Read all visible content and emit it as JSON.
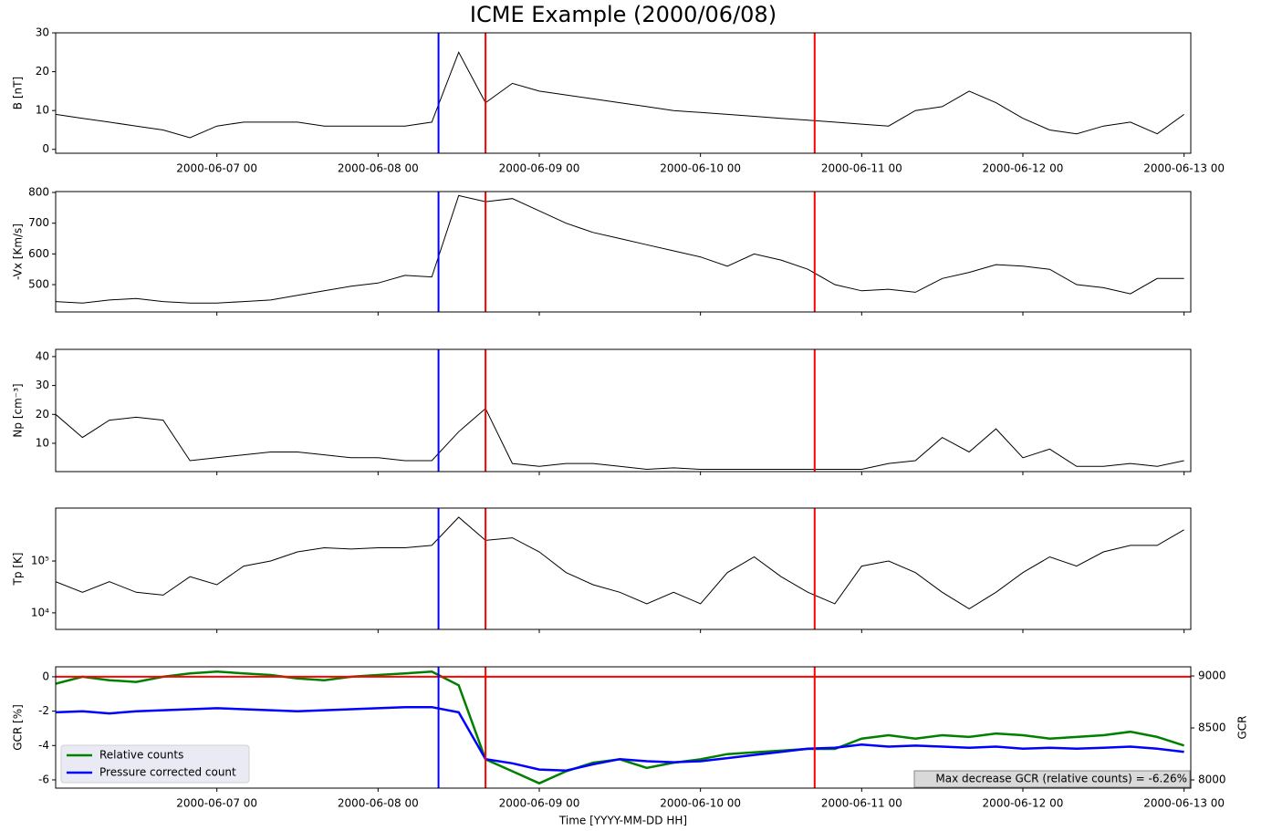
{
  "chart_data": [
    {
      "type": "line",
      "title": "ICME Example (2000/06/08)",
      "ylabel": "B [nT]",
      "color": "#000000",
      "xtick_labels": true,
      "x": [
        "2000-06-06 00",
        "2000-06-06 04",
        "2000-06-06 08",
        "2000-06-06 12",
        "2000-06-06 16",
        "2000-06-06 20",
        "2000-06-07 00",
        "2000-06-07 04",
        "2000-06-07 08",
        "2000-06-07 12",
        "2000-06-07 16",
        "2000-06-07 20",
        "2000-06-08 00",
        "2000-06-08 04",
        "2000-06-08 08",
        "2000-06-08 12",
        "2000-06-08 16",
        "2000-06-08 20",
        "2000-06-09 00",
        "2000-06-09 04",
        "2000-06-09 08",
        "2000-06-09 12",
        "2000-06-09 16",
        "2000-06-09 20",
        "2000-06-10 00",
        "2000-06-10 04",
        "2000-06-10 08",
        "2000-06-10 12",
        "2000-06-10 16",
        "2000-06-10 20",
        "2000-06-11 00",
        "2000-06-11 04",
        "2000-06-11 08",
        "2000-06-11 12",
        "2000-06-11 16",
        "2000-06-11 20",
        "2000-06-12 00",
        "2000-06-12 04",
        "2000-06-12 08",
        "2000-06-12 12",
        "2000-06-12 16",
        "2000-06-12 20",
        "2000-06-13 00"
      ],
      "values": [
        9,
        8,
        7,
        6,
        5,
        3,
        6,
        7,
        7,
        7,
        6,
        6,
        6,
        6,
        7,
        25,
        12,
        17,
        15,
        14,
        13,
        12,
        11,
        10,
        9.5,
        9,
        8.5,
        8,
        7.5,
        7,
        6.5,
        6,
        10,
        11,
        15,
        12,
        8,
        5,
        4,
        6,
        7,
        4,
        9
      ],
      "xlim": [
        "2000-06-06 00",
        "2000-06-13 01"
      ],
      "xticks": [
        "2000-06-07 00",
        "2000-06-08 00",
        "2000-06-09 00",
        "2000-06-10 00",
        "2000-06-11 00",
        "2000-06-12 00",
        "2000-06-13 00"
      ],
      "ylim": [
        -1,
        30
      ],
      "yticks": [
        0,
        10,
        20,
        30
      ],
      "vlines": [
        {
          "x": "2000-06-08 09",
          "color": "#0000ff"
        },
        {
          "x": "2000-06-08 16",
          "color": "#ff0000"
        },
        {
          "x": "2000-06-10 17",
          "color": "#ff0000"
        }
      ]
    },
    {
      "type": "line",
      "ylabel": "-Vx [Km/s]",
      "color": "#000000",
      "xtick_labels": false,
      "x": [
        "2000-06-06 00",
        "2000-06-06 04",
        "2000-06-06 08",
        "2000-06-06 12",
        "2000-06-06 16",
        "2000-06-06 20",
        "2000-06-07 00",
        "2000-06-07 04",
        "2000-06-07 08",
        "2000-06-07 12",
        "2000-06-07 16",
        "2000-06-07 20",
        "2000-06-08 00",
        "2000-06-08 04",
        "2000-06-08 08",
        "2000-06-08 12",
        "2000-06-08 16",
        "2000-06-08 20",
        "2000-06-09 00",
        "2000-06-09 04",
        "2000-06-09 08",
        "2000-06-09 12",
        "2000-06-09 16",
        "2000-06-09 20",
        "2000-06-10 00",
        "2000-06-10 04",
        "2000-06-10 08",
        "2000-06-10 12",
        "2000-06-10 16",
        "2000-06-10 20",
        "2000-06-11 00",
        "2000-06-11 04",
        "2000-06-11 08",
        "2000-06-11 12",
        "2000-06-11 16",
        "2000-06-11 20",
        "2000-06-12 00",
        "2000-06-12 04",
        "2000-06-12 08",
        "2000-06-12 12",
        "2000-06-12 16",
        "2000-06-12 20",
        "2000-06-13 00"
      ],
      "values": [
        445,
        440,
        450,
        455,
        445,
        440,
        440,
        445,
        450,
        465,
        480,
        495,
        505,
        530,
        525,
        790,
        770,
        780,
        740,
        700,
        670,
        650,
        630,
        610,
        590,
        560,
        600,
        580,
        550,
        500,
        480,
        485,
        475,
        520,
        540,
        565,
        560,
        550,
        500,
        490,
        470,
        520,
        520
      ],
      "xlim": [
        "2000-06-06 00",
        "2000-06-13 01"
      ],
      "xticks": [
        "2000-06-07 00",
        "2000-06-08 00",
        "2000-06-09 00",
        "2000-06-10 00",
        "2000-06-11 00",
        "2000-06-12 00",
        "2000-06-13 00"
      ],
      "ylim": [
        411,
        803
      ],
      "yticks": [
        500,
        600,
        700,
        800
      ],
      "vlines": [
        {
          "x": "2000-06-08 09",
          "color": "#0000ff"
        },
        {
          "x": "2000-06-08 16",
          "color": "#ff0000"
        },
        {
          "x": "2000-06-10 17",
          "color": "#ff0000"
        }
      ]
    },
    {
      "type": "line",
      "ylabel": "Np [cm⁻³]",
      "color": "#000000",
      "xtick_labels": false,
      "x": [
        "2000-06-06 00",
        "2000-06-06 04",
        "2000-06-06 08",
        "2000-06-06 12",
        "2000-06-06 16",
        "2000-06-06 20",
        "2000-06-07 00",
        "2000-06-07 04",
        "2000-06-07 08",
        "2000-06-07 12",
        "2000-06-07 16",
        "2000-06-07 20",
        "2000-06-08 00",
        "2000-06-08 04",
        "2000-06-08 08",
        "2000-06-08 12",
        "2000-06-08 16",
        "2000-06-08 20",
        "2000-06-09 00",
        "2000-06-09 04",
        "2000-06-09 08",
        "2000-06-09 12",
        "2000-06-09 16",
        "2000-06-09 20",
        "2000-06-10 00",
        "2000-06-10 04",
        "2000-06-10 08",
        "2000-06-10 12",
        "2000-06-10 16",
        "2000-06-10 20",
        "2000-06-11 00",
        "2000-06-11 04",
        "2000-06-11 08",
        "2000-06-11 12",
        "2000-06-11 16",
        "2000-06-11 20",
        "2000-06-12 00",
        "2000-06-12 04",
        "2000-06-12 08",
        "2000-06-12 12",
        "2000-06-12 16",
        "2000-06-12 20",
        "2000-06-13 00"
      ],
      "values": [
        20,
        12,
        18,
        19,
        18,
        4,
        5,
        6,
        7,
        7,
        6,
        5,
        5,
        4,
        4,
        14,
        22,
        3,
        2,
        3,
        3,
        2,
        1,
        1.5,
        1,
        1,
        1,
        1,
        1,
        1,
        1,
        3,
        4,
        12,
        7,
        15,
        5,
        8,
        2,
        2,
        3,
        2,
        4
      ],
      "xlim": [
        "2000-06-06 00",
        "2000-06-13 01"
      ],
      "xticks": [
        "2000-06-07 00",
        "2000-06-08 00",
        "2000-06-09 00",
        "2000-06-10 00",
        "2000-06-11 00",
        "2000-06-12 00",
        "2000-06-13 00"
      ],
      "ylim": [
        0.2,
        42.5
      ],
      "yticks": [
        10,
        20,
        30,
        40
      ],
      "vlines": [
        {
          "x": "2000-06-08 09",
          "color": "#0000ff"
        },
        {
          "x": "2000-06-08 16",
          "color": "#ff0000"
        },
        {
          "x": "2000-06-10 17",
          "color": "#ff0000"
        }
      ]
    },
    {
      "type": "line",
      "ylabel": "Tp [K]",
      "color": "#000000",
      "xtick_labels": false,
      "log_y": true,
      "x": [
        "2000-06-06 00",
        "2000-06-06 04",
        "2000-06-06 08",
        "2000-06-06 12",
        "2000-06-06 16",
        "2000-06-06 20",
        "2000-06-07 00",
        "2000-06-07 04",
        "2000-06-07 08",
        "2000-06-07 12",
        "2000-06-07 16",
        "2000-06-07 20",
        "2000-06-08 00",
        "2000-06-08 04",
        "2000-06-08 08",
        "2000-06-08 12",
        "2000-06-08 16",
        "2000-06-08 20",
        "2000-06-09 00",
        "2000-06-09 04",
        "2000-06-09 08",
        "2000-06-09 12",
        "2000-06-09 16",
        "2000-06-09 20",
        "2000-06-10 00",
        "2000-06-10 04",
        "2000-06-10 08",
        "2000-06-10 12",
        "2000-06-10 16",
        "2000-06-10 20",
        "2000-06-11 00",
        "2000-06-11 04",
        "2000-06-11 08",
        "2000-06-11 12",
        "2000-06-11 16",
        "2000-06-11 20",
        "2000-06-12 00",
        "2000-06-12 04",
        "2000-06-12 08",
        "2000-06-12 12",
        "2000-06-12 16",
        "2000-06-12 20",
        "2000-06-13 00"
      ],
      "values": [
        40000,
        25000,
        40000,
        25000,
        22000,
        50000,
        35000,
        80000,
        100000,
        150000,
        180000,
        170000,
        180000,
        180000,
        200000,
        700000,
        250000,
        280000,
        150000,
        60000,
        35000,
        25000,
        15000,
        25000,
        15000,
        60000,
        120000,
        50000,
        25000,
        15000,
        80000,
        100000,
        60000,
        25000,
        12000,
        25000,
        60000,
        120000,
        80000,
        150000,
        200000,
        200000,
        400000
      ],
      "xlim": [
        "2000-06-06 00",
        "2000-06-13 01"
      ],
      "xticks": [
        "2000-06-07 00",
        "2000-06-08 00",
        "2000-06-09 00",
        "2000-06-10 00",
        "2000-06-11 00",
        "2000-06-12 00",
        "2000-06-13 00"
      ],
      "ylim": [
        4800,
        1050000
      ],
      "yticks": [
        {
          "value": 10000,
          "label": "10⁴"
        },
        {
          "value": 100000,
          "label": "10⁵"
        }
      ],
      "vlines": [
        {
          "x": "2000-06-08 09",
          "color": "#0000ff"
        },
        {
          "x": "2000-06-08 16",
          "color": "#ff0000"
        },
        {
          "x": "2000-06-10 17",
          "color": "#ff0000"
        }
      ]
    },
    {
      "type": "line",
      "ylabel": "GCR [%]",
      "y2label": "GCR",
      "xlabel": "Time [YYYY-MM-DD HH]",
      "xtick_labels": true,
      "legend": "lower left",
      "annotation": "Max decrease GCR (relative counts) = -6.26%",
      "x": [
        "2000-06-06 00",
        "2000-06-06 04",
        "2000-06-06 08",
        "2000-06-06 12",
        "2000-06-06 16",
        "2000-06-06 20",
        "2000-06-07 00",
        "2000-06-07 04",
        "2000-06-07 08",
        "2000-06-07 12",
        "2000-06-07 16",
        "2000-06-07 20",
        "2000-06-08 00",
        "2000-06-08 04",
        "2000-06-08 08",
        "2000-06-08 12",
        "2000-06-08 16",
        "2000-06-08 20",
        "2000-06-09 00",
        "2000-06-09 04",
        "2000-06-09 08",
        "2000-06-09 12",
        "2000-06-09 16",
        "2000-06-09 20",
        "2000-06-10 00",
        "2000-06-10 04",
        "2000-06-10 08",
        "2000-06-10 12",
        "2000-06-10 16",
        "2000-06-10 20",
        "2000-06-11 00",
        "2000-06-11 04",
        "2000-06-11 08",
        "2000-06-11 12",
        "2000-06-11 16",
        "2000-06-11 20",
        "2000-06-12 00",
        "2000-06-12 04",
        "2000-06-12 08",
        "2000-06-12 12",
        "2000-06-12 16",
        "2000-06-12 20",
        "2000-06-13 00"
      ],
      "series": [
        {
          "name": "Relative counts",
          "color": "#008000",
          "values": [
            -0.4,
            0,
            -0.2,
            -0.3,
            0,
            0.2,
            0.3,
            0.2,
            0.1,
            -0.1,
            -0.2,
            0,
            0.1,
            0.2,
            0.3,
            -0.5,
            -4.8,
            -5.5,
            -6.2,
            -5.5,
            -5.0,
            -4.8,
            -5.3,
            -5.0,
            -4.8,
            -4.5,
            -4.4,
            -4.3,
            -4.2,
            -4.2,
            -3.6,
            -3.4,
            -3.6,
            -3.4,
            -3.5,
            -3.3,
            -3.4,
            -3.6,
            -3.5,
            -3.4,
            -3.2,
            -3.5,
            -4.0
          ]
        },
        {
          "name": "Pressure corrected count",
          "color": "#0000ff",
          "axis": "y2",
          "values": [
            8650,
            8660,
            8640,
            8660,
            8670,
            8680,
            8690,
            8680,
            8670,
            8660,
            8670,
            8680,
            8690,
            8700,
            8700,
            8650,
            8200,
            8160,
            8100,
            8090,
            8150,
            8200,
            8180,
            8170,
            8180,
            8210,
            8240,
            8270,
            8300,
            8310,
            8340,
            8320,
            8330,
            8320,
            8310,
            8320,
            8300,
            8310,
            8300,
            8310,
            8320,
            8300,
            8270
          ]
        }
      ],
      "xlim": [
        "2000-06-06 00",
        "2000-06-13 01"
      ],
      "xticks": [
        "2000-06-07 00",
        "2000-06-08 00",
        "2000-06-09 00",
        "2000-06-10 00",
        "2000-06-11 00",
        "2000-06-12 00",
        "2000-06-13 00"
      ],
      "ylim": [
        -6.48,
        0.58
      ],
      "yticks": [
        -6,
        -4,
        -2,
        0
      ],
      "y2lim": [
        7921,
        9088
      ],
      "y2ticks": [
        8000,
        8500,
        9000
      ],
      "hline": {
        "y": 0,
        "color": "#ff0000"
      },
      "vlines": [
        {
          "x": "2000-06-08 09",
          "color": "#0000ff"
        },
        {
          "x": "2000-06-08 16",
          "color": "#ff0000"
        },
        {
          "x": "2000-06-10 17",
          "color": "#ff0000"
        }
      ]
    }
  ]
}
